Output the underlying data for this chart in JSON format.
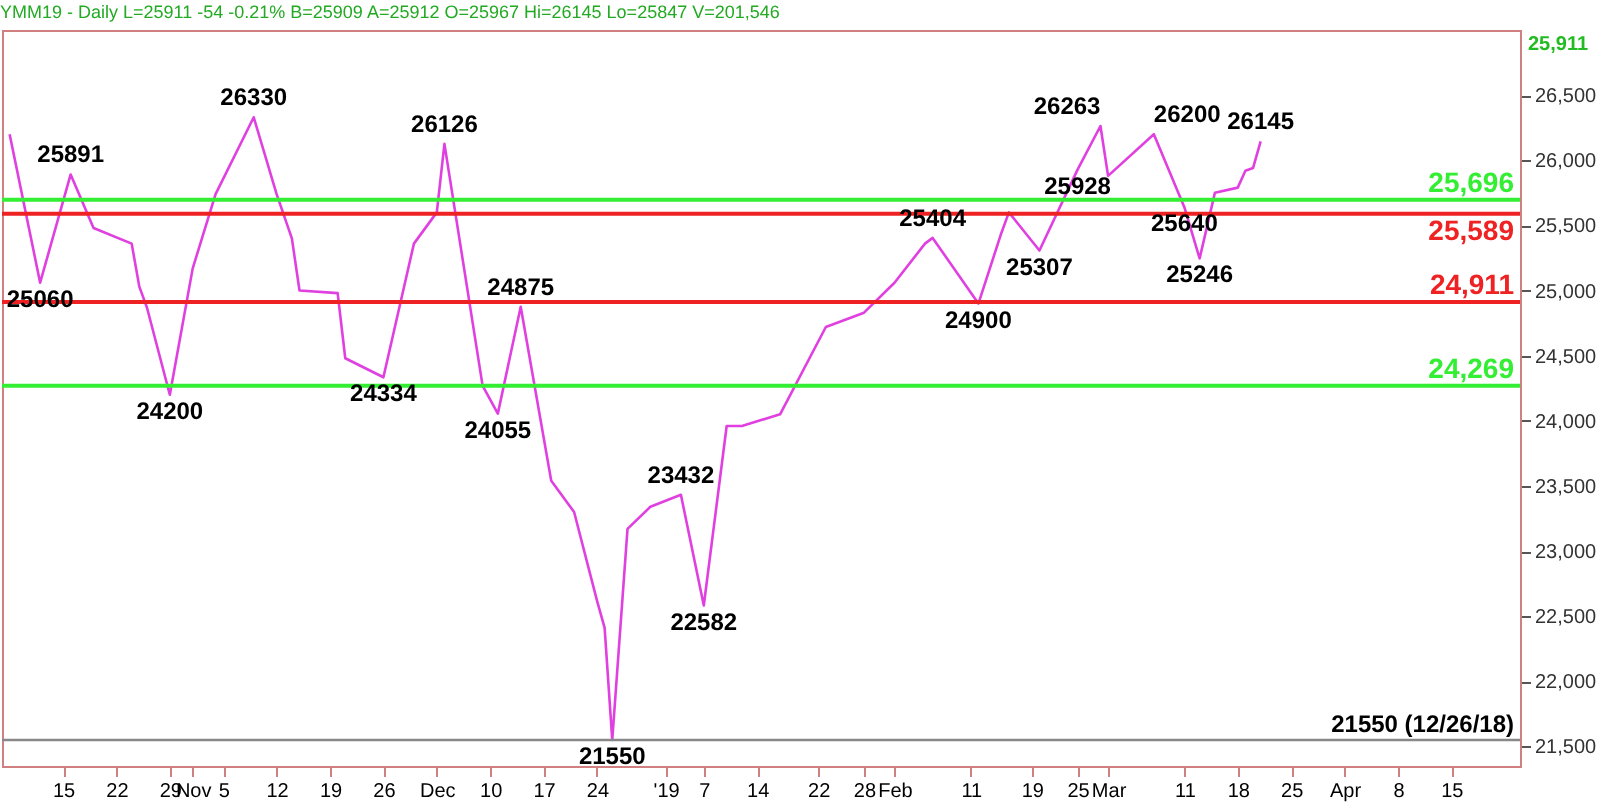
{
  "chart_data": {
    "type": "line",
    "title": "YMM19 - Daily L=25911 -54 -0.21% B=25909 A=25912 O=25967 Hi=26145 Lo=25847 V=201,546",
    "x": [
      "2018-10-08",
      "2018-10-12",
      "2018-10-16",
      "2018-10-19",
      "2018-10-24",
      "2018-10-25",
      "2018-10-26",
      "2018-10-29",
      "2018-11-01",
      "2018-11-04",
      "2018-11-09",
      "2018-11-12",
      "2018-11-14",
      "2018-11-15",
      "2018-11-20",
      "2018-11-21",
      "2018-11-26",
      "2018-11-30",
      "2018-12-03",
      "2018-12-04",
      "2018-12-09",
      "2018-12-11",
      "2018-12-14",
      "2018-12-18",
      "2018-12-21",
      "2018-12-24",
      "2018-12-25",
      "2018-12-26",
      "2018-12-28",
      "2018-12-31",
      "2019-01-04",
      "2019-01-07",
      "2019-01-10",
      "2019-01-12",
      "2019-01-17",
      "2019-01-23",
      "2019-01-28",
      "2019-02-01",
      "2019-02-05",
      "2019-02-06",
      "2019-02-12",
      "2019-02-15",
      "2019-02-16",
      "2019-02-20",
      "2019-02-25",
      "2019-02-28",
      "2019-03-01",
      "2019-03-07",
      "2019-03-11",
      "2019-03-13",
      "2019-03-15",
      "2019-03-18",
      "2019-03-19",
      "2019-03-20",
      "2019-03-21"
    ],
    "series": [
      {
        "color": "#e040e0",
        "values": [
          26200,
          25060,
          25891,
          25480,
          25360,
          25030,
          24870,
          24200,
          25170,
          25740,
          26330,
          25740,
          25400,
          25000,
          24980,
          24480,
          24334,
          25360,
          25600,
          26126,
          24270,
          24055,
          24875,
          23540,
          23300,
          22620,
          22410,
          21550,
          23170,
          23340,
          23432,
          22582,
          23960,
          23960,
          24050,
          24720,
          24830,
          25060,
          25360,
          25404,
          24900,
          25440,
          25600,
          25307,
          25928,
          26263,
          25880,
          26200,
          25640,
          25246,
          25750,
          25790,
          25920,
          25940,
          26145
        ]
      }
    ],
    "xlim": [
      "2018-10-07",
      "2019-04-24"
    ],
    "xticks": [
      {
        "value": "2018-10-15",
        "label": "15"
      },
      {
        "value": "2018-10-22",
        "label": "22"
      },
      {
        "value": "2018-10-29",
        "label": "29"
      },
      {
        "value": "2018-11-01",
        "label": "Nov"
      },
      {
        "value": "2018-11-05",
        "label": "5"
      },
      {
        "value": "2018-11-12",
        "label": "12"
      },
      {
        "value": "2018-11-19",
        "label": "19"
      },
      {
        "value": "2018-11-26",
        "label": "26"
      },
      {
        "value": "2018-12-03",
        "label": "Dec"
      },
      {
        "value": "2018-12-10",
        "label": "10"
      },
      {
        "value": "2018-12-17",
        "label": "17"
      },
      {
        "value": "2018-12-24",
        "label": "24"
      },
      {
        "value": "2019-01-02",
        "label": "'19"
      },
      {
        "value": "2019-01-07",
        "label": "7"
      },
      {
        "value": "2019-01-14",
        "label": "14"
      },
      {
        "value": "2019-01-22",
        "label": "22"
      },
      {
        "value": "2019-01-28",
        "label": "28"
      },
      {
        "value": "2019-02-01",
        "label": "Feb"
      },
      {
        "value": "2019-02-11",
        "label": "11"
      },
      {
        "value": "2019-02-19",
        "label": "19"
      },
      {
        "value": "2019-02-25",
        "label": "25"
      },
      {
        "value": "2019-03-01",
        "label": "Mar"
      },
      {
        "value": "2019-03-11",
        "label": "11"
      },
      {
        "value": "2019-03-18",
        "label": "18"
      },
      {
        "value": "2019-03-25",
        "label": "25"
      },
      {
        "value": "2019-04-01",
        "label": "Apr"
      },
      {
        "value": "2019-04-08",
        "label": "8"
      },
      {
        "value": "2019-04-15",
        "label": "15"
      }
    ],
    "ylim": [
      21350,
      27000
    ],
    "yticks": [
      {
        "value": 21500,
        "label": "21,500"
      },
      {
        "value": 22000,
        "label": "22,000"
      },
      {
        "value": 22500,
        "label": "22,500"
      },
      {
        "value": 23000,
        "label": "23,000"
      },
      {
        "value": 23500,
        "label": "23,500"
      },
      {
        "value": 24000,
        "label": "24,000"
      },
      {
        "value": 24500,
        "label": "24,500"
      },
      {
        "value": 25000,
        "label": "25,000"
      },
      {
        "value": 25500,
        "label": "25,500"
      },
      {
        "value": 26000,
        "label": "26,000"
      },
      {
        "value": 26500,
        "label": "26,500"
      }
    ],
    "ref_lines": [
      {
        "axis": "y",
        "value": 25696,
        "label": "25,696",
        "color": "#33ee33"
      },
      {
        "axis": "y",
        "value": 25589,
        "label": "25,589",
        "color": "#ee2222"
      },
      {
        "axis": "y",
        "value": 24911,
        "label": "24,911",
        "color": "#ee2222"
      },
      {
        "axis": "y",
        "value": 24269,
        "label": "24,269",
        "color": "#33ee33"
      },
      {
        "axis": "y",
        "value": 21550,
        "label": "21550 (12/26/18)",
        "color": "#888888"
      }
    ],
    "annotations": [
      {
        "text": "25060",
        "x": "2018-10-12",
        "y": 25060
      },
      {
        "text": "25891",
        "x": "2018-10-16",
        "y": 25891
      },
      {
        "text": "24200",
        "x": "2018-10-29",
        "y": 24200
      },
      {
        "text": "26330",
        "x": "2018-11-09",
        "y": 26330
      },
      {
        "text": "24334",
        "x": "2018-11-26",
        "y": 24334
      },
      {
        "text": "26126",
        "x": "2018-12-04",
        "y": 26126
      },
      {
        "text": "24055",
        "x": "2018-12-11",
        "y": 24055
      },
      {
        "text": "24875",
        "x": "2018-12-14",
        "y": 24875
      },
      {
        "text": "21550",
        "x": "2018-12-26",
        "y": 21550
      },
      {
        "text": "23432",
        "x": "2019-01-04",
        "y": 23432
      },
      {
        "text": "22582",
        "x": "2019-01-07",
        "y": 22582
      },
      {
        "text": "25404",
        "x": "2019-02-06",
        "y": 25404
      },
      {
        "text": "24900",
        "x": "2019-02-12",
        "y": 24900
      },
      {
        "text": "25307",
        "x": "2019-02-20",
        "y": 25307
      },
      {
        "text": "25928",
        "x": "2019-02-25",
        "y": 25928
      },
      {
        "text": "26263",
        "x": "2019-02-28",
        "y": 26263
      },
      {
        "text": "26200",
        "x": "2019-03-07",
        "y": 26200
      },
      {
        "text": "25640",
        "x": "2019-03-11",
        "y": 25640
      },
      {
        "text": "25246",
        "x": "2019-03-13",
        "y": 25246
      },
      {
        "text": "26145",
        "x": "2019-03-21",
        "y": 26145
      },
      "25,911"
    ],
    "grid": false,
    "marker": "none",
    "line_style": "solid"
  }
}
